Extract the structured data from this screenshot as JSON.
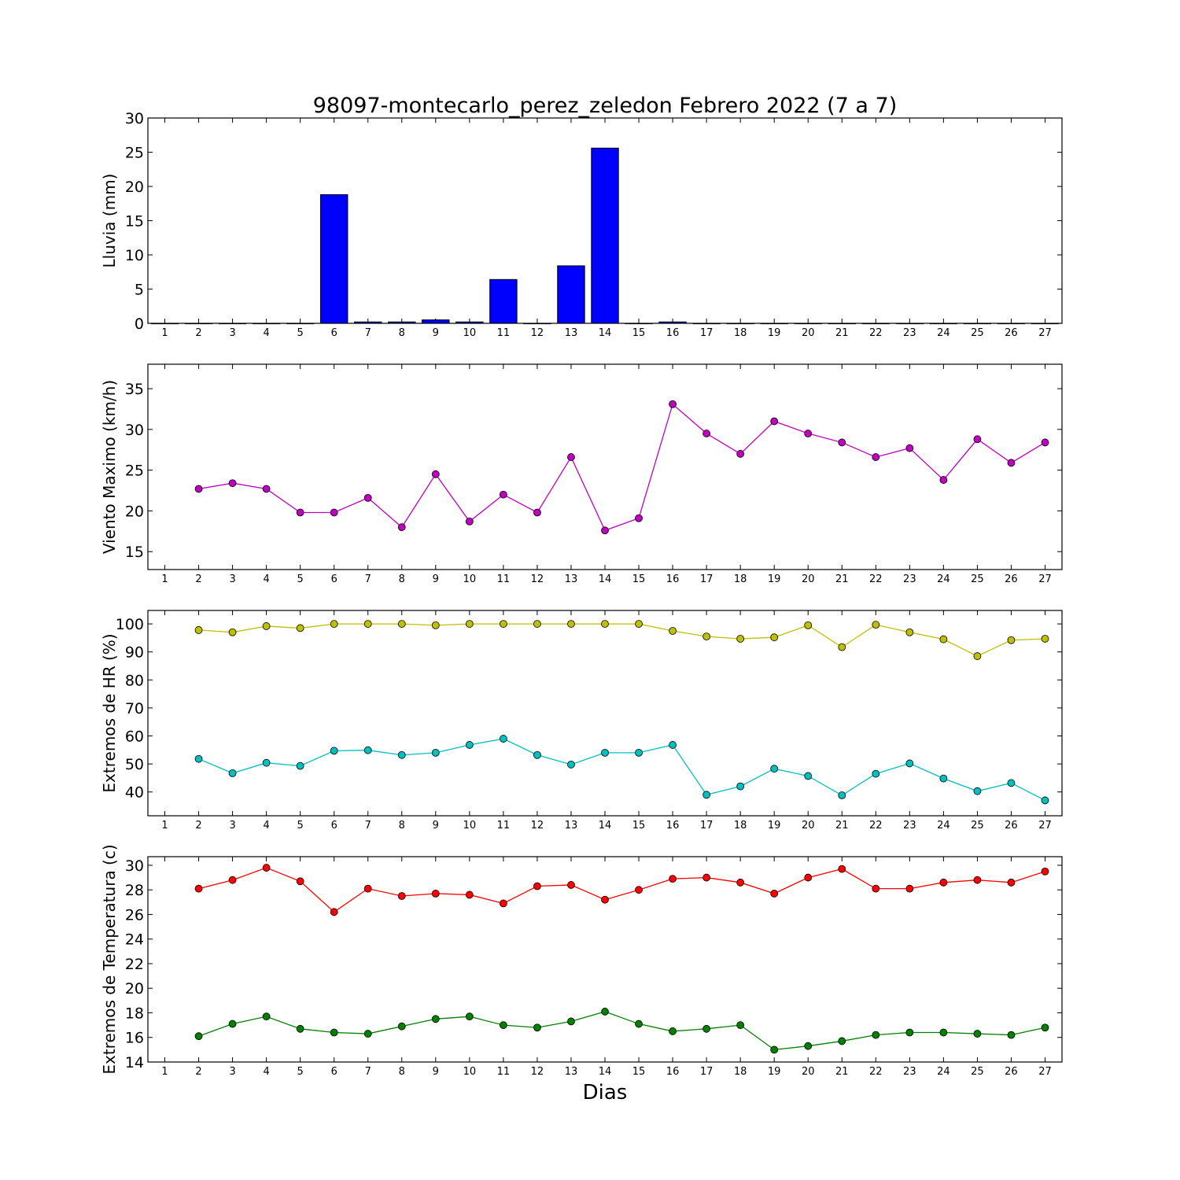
{
  "chart_data": [
    {
      "type": "bar",
      "title": "98097-montecarlo_perez_zeledon Febrero 2022  (7 a 7)",
      "ylabel": "Lluvia (mm)",
      "xlabel": "",
      "categories": [
        1,
        2,
        3,
        4,
        5,
        6,
        7,
        8,
        9,
        10,
        11,
        12,
        13,
        14,
        15,
        16,
        17,
        18,
        19,
        20,
        21,
        22,
        23,
        24,
        25,
        26,
        27
      ],
      "values": [
        0,
        0,
        0,
        0,
        0,
        18.8,
        0.2,
        0.2,
        0.5,
        0.2,
        6.4,
        0,
        8.4,
        25.6,
        0,
        0.2,
        0,
        0,
        0,
        0,
        0,
        0,
        0,
        0,
        0,
        0,
        0
      ],
      "color": "#0000ff",
      "ylim": [
        0,
        30
      ],
      "yticks": [
        0,
        5,
        10,
        15,
        20,
        25,
        30
      ],
      "grid": false
    },
    {
      "type": "line",
      "title": "",
      "ylabel": "Viento Maximo (km/h)",
      "xlabel": "",
      "x": [
        2,
        3,
        4,
        5,
        6,
        7,
        8,
        9,
        10,
        11,
        12,
        13,
        14,
        15,
        16,
        17,
        18,
        19,
        20,
        21,
        22,
        23,
        24,
        25,
        26,
        27
      ],
      "series": [
        {
          "color": "#bf00bf",
          "values": [
            22.7,
            23.4,
            22.7,
            19.8,
            19.8,
            21.6,
            18.0,
            24.5,
            18.7,
            22.0,
            19.8,
            26.6,
            17.6,
            19.1,
            33.1,
            29.5,
            27.0,
            31.0,
            29.5,
            28.4,
            26.6,
            27.7,
            23.8,
            28.8,
            25.9,
            28.4
          ]
        }
      ],
      "xticks": [
        1,
        2,
        3,
        4,
        5,
        6,
        7,
        8,
        9,
        10,
        11,
        12,
        13,
        14,
        15,
        16,
        17,
        18,
        19,
        20,
        21,
        22,
        23,
        24,
        25,
        26,
        27
      ],
      "ylim": [
        12.8,
        38
      ],
      "yticks": [
        15,
        20,
        25,
        30,
        35
      ],
      "grid": false
    },
    {
      "type": "line",
      "title": "",
      "ylabel": "Extremos de HR (%)",
      "xlabel": "",
      "x": [
        2,
        3,
        4,
        5,
        6,
        7,
        8,
        9,
        10,
        11,
        12,
        13,
        14,
        15,
        16,
        17,
        18,
        19,
        20,
        21,
        22,
        23,
        24,
        25,
        26,
        27
      ],
      "series": [
        {
          "color": "#bfbf00",
          "values": [
            97.8,
            97.0,
            99.2,
            98.5,
            100,
            100,
            100,
            99.5,
            100,
            100,
            100,
            100,
            100,
            100,
            97.5,
            95.5,
            94.7,
            95.2,
            99.5,
            91.7,
            99.7,
            97.0,
            94.5,
            88.5,
            94.2,
            94.7
          ]
        },
        {
          "color": "#00bfbf",
          "values": [
            51.8,
            46.7,
            50.4,
            49.3,
            54.7,
            54.9,
            53.2,
            54.0,
            56.8,
            59.0,
            53.2,
            49.8,
            54.0,
            54.0,
            56.8,
            39.0,
            42.0,
            48.3,
            45.7,
            38.8,
            46.5,
            50.2,
            44.8,
            40.3,
            43.2,
            37.0
          ]
        }
      ],
      "xticks": [
        1,
        2,
        3,
        4,
        5,
        6,
        7,
        8,
        9,
        10,
        11,
        12,
        13,
        14,
        15,
        16,
        17,
        18,
        19,
        20,
        21,
        22,
        23,
        24,
        25,
        26,
        27
      ],
      "ylim": [
        31.5,
        104.8
      ],
      "yticks": [
        40,
        50,
        60,
        70,
        80,
        90,
        100
      ],
      "grid": false
    },
    {
      "type": "line",
      "title": "",
      "ylabel": "Extremos de Temperatura (c)",
      "xlabel": "Dias",
      "x": [
        2,
        3,
        4,
        5,
        6,
        7,
        8,
        9,
        10,
        11,
        12,
        13,
        14,
        15,
        16,
        17,
        18,
        19,
        20,
        21,
        22,
        23,
        24,
        25,
        26,
        27
      ],
      "series": [
        {
          "color": "#ff0000",
          "values": [
            28.1,
            28.8,
            29.8,
            28.7,
            26.2,
            28.1,
            27.5,
            27.7,
            27.6,
            26.9,
            28.3,
            28.4,
            27.2,
            28.0,
            28.9,
            29.0,
            28.6,
            27.7,
            29.0,
            29.7,
            28.1,
            28.1,
            28.6,
            28.8,
            28.6,
            29.5
          ]
        },
        {
          "color": "#008000",
          "values": [
            16.1,
            17.1,
            17.7,
            16.7,
            16.4,
            16.3,
            16.9,
            17.5,
            17.7,
            17.0,
            16.8,
            17.3,
            18.1,
            17.1,
            16.5,
            16.7,
            17.0,
            15.0,
            15.3,
            15.7,
            16.2,
            16.4,
            16.4,
            16.3,
            16.2,
            16.8
          ]
        }
      ],
      "xticks": [
        1,
        2,
        3,
        4,
        5,
        6,
        7,
        8,
        9,
        10,
        11,
        12,
        13,
        14,
        15,
        16,
        17,
        18,
        19,
        20,
        21,
        22,
        23,
        24,
        25,
        26,
        27
      ],
      "ylim": [
        14,
        30.7
      ],
      "yticks": [
        14,
        16,
        18,
        20,
        22,
        24,
        26,
        28,
        30
      ],
      "grid": false
    }
  ]
}
